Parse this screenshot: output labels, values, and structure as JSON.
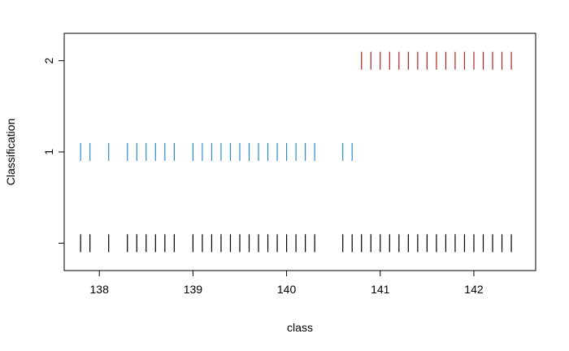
{
  "chart_data": {
    "type": "scatter",
    "title": "",
    "xlabel": "class",
    "ylabel": "Classification",
    "xlim": [
      137.625,
      142.66
    ],
    "ylim": [
      -0.3,
      2.3
    ],
    "x_ticks": [
      138,
      139,
      140,
      141,
      142
    ],
    "x_tick_labels": [
      "138",
      "139",
      "140",
      "141",
      "142"
    ],
    "y_ticks": [
      0,
      1,
      2
    ],
    "y_tick_labels": [
      "",
      "1",
      "2"
    ],
    "grid": false,
    "mark": "vertical-tick",
    "series": [
      {
        "y": 0,
        "color": "#000000",
        "x": [
          137.8,
          137.9,
          138.1,
          138.3,
          138.4,
          138.5,
          138.6,
          138.7,
          138.8,
          139.0,
          139.1,
          139.2,
          139.3,
          139.4,
          139.5,
          139.6,
          139.7,
          139.8,
          139.9,
          140.0,
          140.1,
          140.2,
          140.3,
          140.6,
          140.7,
          140.8,
          140.9,
          141.0,
          141.1,
          141.2,
          141.3,
          141.4,
          141.5,
          141.6,
          141.7,
          141.8,
          141.9,
          142.0,
          142.1,
          142.2,
          142.3,
          142.4
        ]
      },
      {
        "y": 1,
        "color": "#2b8ccc",
        "x": [
          137.8,
          137.9,
          138.1,
          138.3,
          138.4,
          138.5,
          138.6,
          138.7,
          138.8,
          139.0,
          139.1,
          139.2,
          139.3,
          139.4,
          139.5,
          139.6,
          139.7,
          139.8,
          139.9,
          140.0,
          140.1,
          140.2,
          140.3,
          140.6,
          140.7
        ]
      },
      {
        "y": 2,
        "color": "#b22222",
        "x": [
          140.8,
          140.9,
          141.0,
          141.1,
          141.2,
          141.3,
          141.4,
          141.5,
          141.6,
          141.7,
          141.8,
          141.9,
          142.0,
          142.1,
          142.2,
          142.3,
          142.4
        ]
      }
    ]
  }
}
